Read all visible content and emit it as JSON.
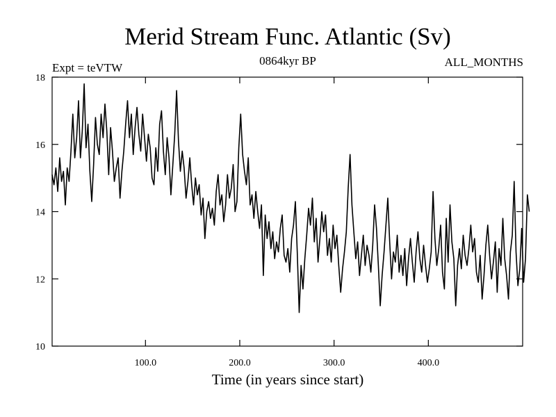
{
  "chart_data": {
    "type": "line",
    "title": "Merid Stream Func. Atlantic (Sv)",
    "subtitle_left": "Expt = teVTW",
    "subtitle_center": "0864kyr BP",
    "subtitle_right": "ALL_MONTHS",
    "xlabel": "Time (in years since start)",
    "ylabel": "",
    "xlim": [
      1,
      500
    ],
    "ylim": [
      10,
      18
    ],
    "x_ticks": [
      100,
      200,
      300,
      400
    ],
    "x_tick_labels": [
      "100.0",
      "200.0",
      "300.0",
      "400.0"
    ],
    "y_ticks": [
      10,
      12,
      14,
      16,
      18
    ],
    "y_tick_labels": [
      "10",
      "12",
      "14",
      "16",
      "18"
    ],
    "series": [
      {
        "name": "Merid Stream Func. Atlantic",
        "x_start": 1,
        "x_step": 2,
        "values": [
          15.1,
          14.8,
          15.3,
          14.6,
          15.6,
          14.9,
          15.2,
          14.2,
          15.3,
          14.9,
          15.8,
          16.9,
          15.6,
          16.2,
          17.3,
          15.6,
          16.4,
          17.8,
          15.9,
          16.6,
          15.2,
          14.3,
          15.4,
          16.8,
          16.0,
          15.7,
          16.9,
          16.2,
          17.2,
          16.4,
          15.1,
          16.5,
          15.8,
          14.9,
          15.3,
          15.6,
          14.4,
          15.2,
          15.8,
          16.6,
          17.3,
          16.2,
          16.9,
          15.7,
          16.5,
          17.1,
          16.3,
          15.8,
          16.9,
          16.2,
          15.5,
          16.3,
          15.9,
          15.0,
          14.8,
          15.9,
          15.2,
          16.6,
          17.0,
          15.8,
          15.1,
          16.2,
          15.6,
          14.5,
          15.4,
          16.3,
          17.6,
          16.1,
          15.2,
          15.8,
          15.3,
          14.4,
          14.9,
          15.6,
          14.8,
          14.2,
          15.0,
          14.5,
          14.8,
          13.9,
          14.4,
          13.2,
          14.0,
          14.3,
          13.8,
          14.1,
          13.6,
          14.6,
          15.1,
          14.2,
          14.5,
          13.7,
          14.2,
          15.1,
          14.4,
          14.7,
          15.4,
          14.0,
          14.3,
          15.9,
          16.9,
          15.7,
          15.2,
          14.8,
          15.6,
          14.2,
          14.5,
          13.8,
          14.6,
          14.0,
          13.5,
          14.2,
          12.1,
          13.9,
          13.2,
          13.7,
          12.9,
          13.4,
          12.6,
          13.1,
          12.8,
          13.5,
          13.9,
          12.7,
          12.5,
          12.9,
          12.2,
          13.2,
          13.6,
          14.3,
          12.8,
          11.0,
          12.4,
          11.7,
          12.6,
          13.3,
          14.1,
          13.6,
          14.4,
          13.1,
          13.8,
          12.5,
          13.2,
          14.0,
          13.4,
          13.9,
          12.7,
          13.2,
          12.5,
          13.6,
          12.9,
          13.3,
          12.4,
          11.6,
          12.3,
          12.8,
          13.4,
          14.7,
          15.7,
          14.2,
          13.4,
          12.6,
          13.1,
          12.1,
          12.7,
          13.3,
          12.4,
          13.0,
          12.7,
          12.2,
          13.0,
          14.2,
          13.5,
          12.4,
          11.2,
          12.1,
          12.8,
          13.6,
          14.4,
          13.1,
          12.0,
          12.8,
          12.5,
          13.3,
          12.2,
          12.7,
          12.1,
          12.9,
          11.8,
          12.6,
          13.2,
          12.5,
          11.9,
          12.8,
          13.4,
          12.6,
          12.2,
          13.0,
          12.4,
          11.9,
          12.3,
          12.8,
          14.6,
          13.2,
          12.4,
          12.9,
          13.6,
          12.2,
          11.7,
          13.8,
          12.5,
          14.2,
          13.1,
          12.6,
          11.2,
          12.4,
          12.9,
          12.3,
          13.3,
          12.7,
          12.4,
          12.9,
          13.6,
          12.8,
          13.2,
          12.2,
          11.9,
          12.7,
          11.4,
          12.1,
          13.0,
          13.6,
          12.7,
          12.0,
          12.5,
          13.1,
          11.6,
          12.9,
          12.4,
          13.8,
          12.6,
          12.1,
          11.4,
          12.8,
          13.3,
          14.9,
          12.8,
          11.8,
          12.3,
          13.5,
          11.9,
          12.6,
          14.5,
          14.0
        ]
      }
    ]
  }
}
